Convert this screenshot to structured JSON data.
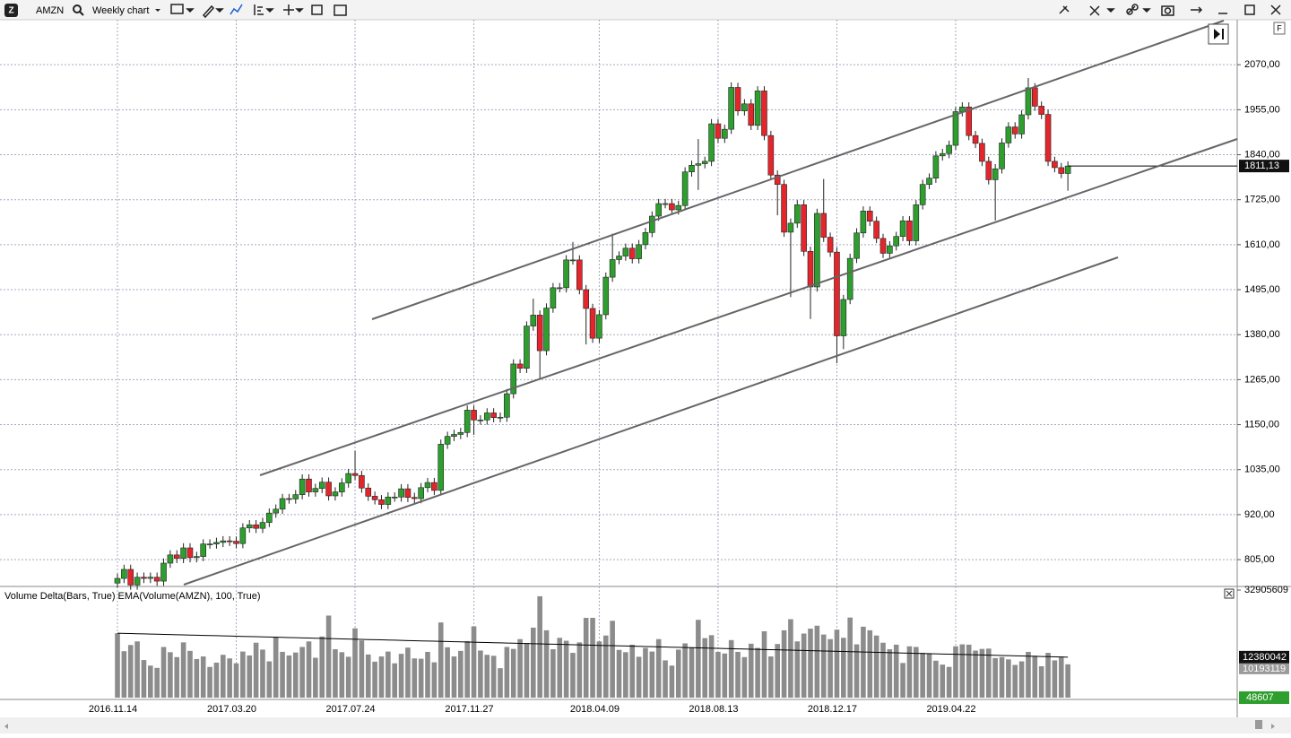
{
  "chart_data": [
    {
      "type": "candlestick",
      "symbol": "AMZN",
      "timeframe": "Weekly chart",
      "categories": [
        "2016.11.14",
        null,
        null,
        null,
        null,
        null,
        null,
        null,
        null,
        null,
        null,
        null,
        null,
        null,
        null,
        null,
        null,
        null,
        "2017.03.20",
        null,
        null,
        null,
        null,
        null,
        null,
        null,
        null,
        null,
        null,
        null,
        null,
        null,
        null,
        null,
        null,
        null,
        "2017.07.24",
        null,
        null,
        null,
        null,
        null,
        null,
        null,
        null,
        null,
        null,
        null,
        null,
        null,
        null,
        null,
        null,
        null,
        "2017.11.27",
        null,
        null,
        null,
        null,
        null,
        null,
        null,
        null,
        null,
        null,
        null,
        null,
        null,
        null,
        null,
        null,
        null,
        null,
        "2018.04.09",
        null,
        null,
        null,
        null,
        null,
        null,
        null,
        null,
        null,
        null,
        null,
        null,
        null,
        null,
        null,
        null,
        null,
        "2018.08.13",
        null,
        null,
        null,
        null,
        null,
        null,
        null,
        null,
        null,
        null,
        null,
        null,
        null,
        null,
        null,
        null,
        null,
        "2018.12.17",
        null,
        null,
        null,
        null,
        null,
        null,
        null,
        null,
        null,
        null,
        null,
        null,
        null,
        null,
        null,
        null,
        null,
        "2019.04.22",
        null,
        null,
        null,
        null,
        null,
        null,
        null,
        null,
        null,
        null,
        null,
        null,
        null,
        null,
        null,
        null,
        null
      ],
      "open": [
        745,
        757,
        780,
        740,
        760,
        757,
        760,
        750,
        796,
        817,
        808,
        835,
        810,
        813,
        845,
        845,
        849,
        853,
        852,
        846,
        886,
        894,
        885,
        900,
        924,
        934,
        961,
        960,
        971,
        1011,
        978,
        987,
        1003,
        968,
        978,
        1001,
        1025,
        1020,
        988,
        967,
        958,
        946,
        965,
        965,
        986,
        964,
        961,
        989,
        1002,
        982,
        1100,
        1120,
        1125,
        1130,
        1187,
        1162,
        1162,
        1180,
        1168,
        1169,
        1229,
        1305,
        1294,
        1402,
        1430,
        1339,
        1448,
        1500,
        1500,
        1571,
        1571,
        1495,
        1447,
        1371,
        1431,
        1527,
        1572,
        1581,
        1601,
        1574,
        1610,
        1641,
        1683,
        1715,
        1715,
        1699,
        1710,
        1796,
        1813,
        1817,
        1823,
        1919,
        1882,
        1905,
        2012,
        1952,
        1970,
        1915,
        2003,
        1889,
        1788,
        1764,
        1642,
        1665,
        1712,
        1593,
        1502,
        1690,
        1629,
        1591,
        1377,
        1470,
        1575,
        1640,
        1696,
        1670,
        1626,
        1588,
        1607,
        1631,
        1671,
        1620,
        1712,
        1764,
        1780,
        1837,
        1843,
        1864,
        1950,
        1962,
        1889,
        1869,
        1823,
        1776,
        1804,
        1870,
        1911,
        1893,
        1942,
        2011,
        1964,
        1943,
        1823,
        1807,
        1792
      ],
      "high": [
        769,
        792,
        792,
        772,
        772,
        772,
        772,
        808,
        829,
        829,
        847,
        847,
        825,
        857,
        857,
        861,
        865,
        865,
        864,
        898,
        906,
        906,
        912,
        936,
        946,
        973,
        973,
        983,
        1023,
        1023,
        999,
        1015,
        1015,
        990,
        1013,
        1037,
        1083,
        1032,
        1000,
        979,
        970,
        977,
        977,
        998,
        998,
        976,
        1001,
        1014,
        1014,
        1112,
        1132,
        1137,
        1142,
        1199,
        1199,
        1174,
        1192,
        1192,
        1181,
        1241,
        1317,
        1317,
        1414,
        1472,
        1442,
        1460,
        1512,
        1512,
        1583,
        1617,
        1583,
        1507,
        1459,
        1443,
        1539,
        1638,
        1593,
        1613,
        1613,
        1622,
        1653,
        1695,
        1727,
        1727,
        1727,
        1722,
        1808,
        1825,
        1880,
        1835,
        1931,
        1931,
        1917,
        2025,
        2024,
        1982,
        1982,
        2015,
        2015,
        1901,
        1800,
        1776,
        1677,
        1724,
        1724,
        1605,
        1702,
        1778,
        1641,
        1603,
        1482,
        1587,
        1652,
        1708,
        1708,
        1682,
        1638,
        1619,
        1643,
        1683,
        1683,
        1724,
        1776,
        1792,
        1849,
        1855,
        1876,
        1962,
        1974,
        1974,
        1901,
        1881,
        1835,
        1816,
        1882,
        1923,
        1923,
        1954,
        2036,
        2023,
        1976,
        1955,
        1835,
        1819,
        1823
      ],
      "low": [
        733,
        745,
        728,
        728,
        745,
        745,
        738,
        738,
        784,
        796,
        796,
        798,
        798,
        801,
        833,
        833,
        837,
        840,
        834,
        834,
        874,
        873,
        873,
        888,
        912,
        922,
        948,
        948,
        959,
        966,
        966,
        975,
        956,
        956,
        966,
        989,
        1008,
        976,
        955,
        946,
        934,
        934,
        953,
        953,
        952,
        949,
        949,
        977,
        970,
        970,
        1088,
        1108,
        1113,
        1118,
        1124,
        1150,
        1150,
        1156,
        1156,
        1157,
        1217,
        1282,
        1282,
        1390,
        1265,
        1327,
        1436,
        1488,
        1488,
        1559,
        1483,
        1355,
        1359,
        1359,
        1419,
        1515,
        1560,
        1569,
        1562,
        1562,
        1598,
        1629,
        1671,
        1703,
        1687,
        1687,
        1698,
        1784,
        1750,
        1805,
        1811,
        1870,
        1870,
        1893,
        1940,
        1940,
        1903,
        1903,
        1877,
        1776,
        1685,
        1630,
        1476,
        1653,
        1581,
        1420,
        1490,
        1617,
        1579,
        1307,
        1343,
        1458,
        1563,
        1628,
        1658,
        1614,
        1576,
        1576,
        1595,
        1619,
        1608,
        1608,
        1700,
        1752,
        1768,
        1825,
        1831,
        1852,
        1938,
        1877,
        1857,
        1811,
        1764,
        1672,
        1792,
        1858,
        1881,
        1881,
        1930,
        1952,
        1931,
        1811,
        1795,
        1780,
        1748
      ],
      "close": [
        757,
        780,
        740,
        760,
        757,
        760,
        750,
        796,
        817,
        808,
        835,
        810,
        813,
        845,
        845,
        849,
        853,
        852,
        846,
        886,
        894,
        885,
        900,
        924,
        934,
        961,
        960,
        971,
        1011,
        978,
        987,
        1003,
        968,
        978,
        1001,
        1025,
        1020,
        988,
        967,
        958,
        946,
        965,
        965,
        986,
        964,
        961,
        989,
        1002,
        982,
        1100,
        1120,
        1125,
        1130,
        1187,
        1162,
        1162,
        1180,
        1168,
        1169,
        1229,
        1305,
        1294,
        1402,
        1430,
        1339,
        1448,
        1500,
        1500,
        1571,
        1571,
        1495,
        1447,
        1371,
        1431,
        1527,
        1572,
        1581,
        1601,
        1574,
        1610,
        1641,
        1683,
        1715,
        1715,
        1699,
        1710,
        1796,
        1813,
        1817,
        1823,
        1919,
        1882,
        1905,
        2012,
        1952,
        1970,
        1915,
        2003,
        1889,
        1788,
        1764,
        1642,
        1665,
        1712,
        1593,
        1502,
        1690,
        1629,
        1591,
        1377,
        1470,
        1575,
        1640,
        1696,
        1670,
        1626,
        1588,
        1607,
        1631,
        1671,
        1620,
        1712,
        1764,
        1780,
        1837,
        1843,
        1864,
        1950,
        1962,
        1889,
        1869,
        1823,
        1776,
        1804,
        1870,
        1911,
        1893,
        1942,
        2011,
        1964,
        1943,
        1823,
        1807,
        1792,
        1811.13
      ],
      "close_labels": {
        "144": "1811,13"
      },
      "up_color": "#2e9e2e",
      "down_color": "#e3262b",
      "ylim": [
        741,
        2185
      ],
      "yticks": [
        {
          "value": 805,
          "label": "805,00"
        },
        {
          "value": 920,
          "label": "920,00"
        },
        {
          "value": 1035,
          "label": "1035,00"
        },
        {
          "value": 1150,
          "label": "1150,00"
        },
        {
          "value": 1265,
          "label": "1265,00"
        },
        {
          "value": 1380,
          "label": "1380,00"
        },
        {
          "value": 1495,
          "label": "1495,00"
        },
        {
          "value": 1610,
          "label": "1610,00"
        },
        {
          "value": 1725,
          "label": "1725,00"
        },
        {
          "value": 1840,
          "label": "1840,00"
        },
        {
          "value": 1955,
          "label": "1955,00"
        },
        {
          "value": 2070,
          "label": "2070,00"
        }
      ],
      "grid": true
    },
    {
      "type": "bar",
      "title": "Volume Delta(Bars, True) EMA(Volume(AMZN), 100, True)",
      "series": [
        {
          "name": "Volume",
          "color": "#8c8c8c",
          "values": [
            19700000,
            14200000,
            16100000,
            17200000,
            11500000,
            9800000,
            9100000,
            15500000,
            13900000,
            12400000,
            16900000,
            14300000,
            11800000,
            12600000,
            9400000,
            10700000,
            13100000,
            12000000,
            10500000,
            14100000,
            12900000,
            16800000,
            14700000,
            11100000,
            18600000,
            14000000,
            12900000,
            13800000,
            15500000,
            17200000,
            12200000,
            18700000,
            25100000,
            14800000,
            13900000,
            12500000,
            21200000,
            17500000,
            13200000,
            11000000,
            12600000,
            14100000,
            10500000,
            13400000,
            15300000,
            12000000,
            11900000,
            14000000,
            10800000,
            23000000,
            15400000,
            12600000,
            14300000,
            17300000,
            21800000,
            14400000,
            13100000,
            12800000,
            9000000,
            15500000,
            14900000,
            17900000,
            16700000,
            21400000,
            31000000,
            20600000,
            14800000,
            18300000,
            17400000,
            13700000,
            16900000,
            24400000,
            24400000,
            17200000,
            19000000,
            23500000,
            14600000,
            13900000,
            16200000,
            12500000,
            15200000,
            14100000,
            17900000,
            11400000,
            9800000,
            14700000,
            16600000,
            15400000,
            23800000,
            18200000,
            19100000,
            14000000,
            13500000,
            17600000,
            14000000,
            12400000,
            16500000,
            15200000,
            20300000,
            12600000,
            16400000,
            20600000,
            24000000,
            17200000,
            19600000,
            21100000,
            22000000,
            19300000,
            17900000,
            20800000,
            18300000,
            24500000,
            16300000,
            21700000,
            20600000,
            19000000,
            16800000,
            14800000,
            16200000,
            10600000,
            15700000,
            15500000,
            13700000,
            13600000,
            11300000,
            10100000,
            9400000,
            15700000,
            16300000,
            16200000,
            14400000,
            14900000,
            15000000,
            12100000,
            12400000,
            11700000,
            10000000,
            11100000,
            14000000,
            12800000,
            9600000,
            13700000,
            11400000,
            12500000,
            10193119
          ]
        },
        {
          "name": "EMA",
          "color": "#000000",
          "values": [
            19700000,
            19650000,
            19600000,
            19550000,
            19500000,
            19450000,
            19400000,
            19340000,
            19290000,
            19240000,
            19190000,
            19140000,
            19090000,
            19040000,
            18990000,
            18940000,
            18890000,
            18840000,
            18790000,
            18730000,
            18680000,
            18630000,
            18580000,
            18530000,
            18480000,
            18430000,
            18380000,
            18330000,
            18280000,
            18230000,
            18180000,
            18130000,
            18070000,
            18020000,
            17970000,
            17920000,
            17870000,
            17820000,
            17770000,
            17720000,
            17670000,
            17620000,
            17570000,
            17520000,
            17460000,
            17410000,
            17360000,
            17310000,
            17260000,
            17210000,
            17160000,
            17110000,
            17060000,
            17010000,
            16960000,
            16910000,
            16860000,
            16800000,
            16750000,
            16700000,
            16650000,
            16600000,
            16550000,
            16500000,
            16450000,
            16400000,
            16350000,
            16300000,
            16250000,
            16190000,
            16140000,
            16090000,
            16040000,
            15990000,
            15940000,
            15890000,
            15840000,
            15790000,
            15740000,
            15690000,
            15640000,
            15590000,
            15530000,
            15480000,
            15430000,
            15380000,
            15330000,
            15280000,
            15230000,
            15180000,
            15130000,
            15080000,
            15030000,
            14980000,
            14920000,
            14870000,
            14820000,
            14770000,
            14720000,
            14670000,
            14620000,
            14570000,
            14520000,
            14470000,
            14420000,
            14370000,
            14320000,
            14260000,
            14210000,
            14160000,
            14110000,
            14060000,
            14010000,
            13960000,
            13910000,
            13860000,
            13810000,
            13760000,
            13710000,
            13650000,
            13600000,
            13550000,
            13500000,
            13450000,
            13400000,
            13350000,
            13300000,
            13250000,
            13200000,
            13150000,
            13100000,
            13050000,
            12990000,
            12940000,
            12890000,
            12840000,
            12790000,
            12740000,
            12690000,
            12640000,
            12590000,
            12540000,
            12490000,
            12440000,
            12380042
          ]
        }
      ],
      "delta_last": 48607,
      "delta_color": "#2e9e2e",
      "ylim": [
        0,
        32905609
      ],
      "yticks": [
        32905609
      ]
    }
  ]
}
